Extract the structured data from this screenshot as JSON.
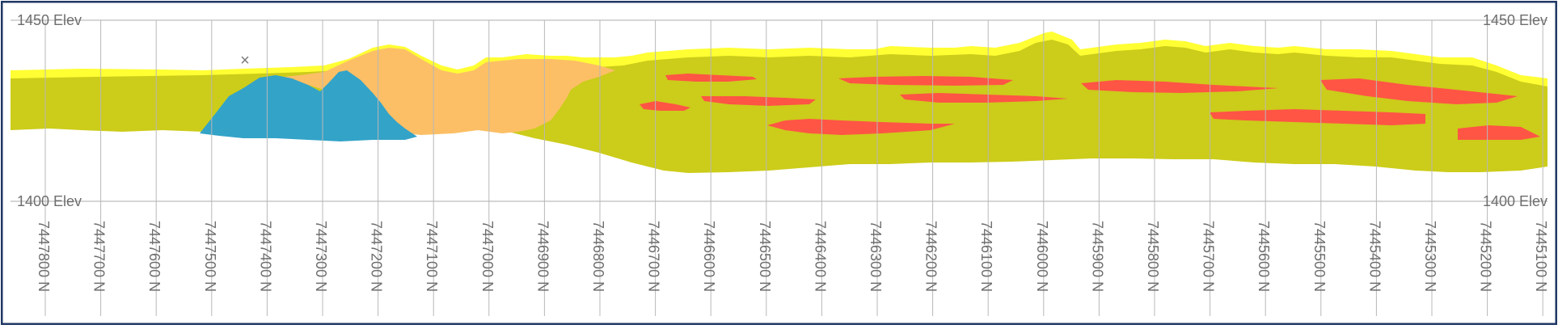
{
  "section": {
    "elevation_labels": {
      "top": "1450 Elev",
      "bottom": "1400 Elev"
    },
    "northing_labels": [
      "7447800 N",
      "7447700 N",
      "7447600 N",
      "7447500 N",
      "7447400 N",
      "7447300 N",
      "7447200 N",
      "7447100 N",
      "7447000 N",
      "7446900 N",
      "7446800 N",
      "7446700 N",
      "7446600 N",
      "7446500 N",
      "7446400 N",
      "7446300 N",
      "7446200 N",
      "7446100 N",
      "7446000 N",
      "7445900 N",
      "7445800 N",
      "7445700 N",
      "7445600 N",
      "7445500 N",
      "7445400 N",
      "7445300 N",
      "7445200 N",
      "7445100 N"
    ],
    "marker_symbol": "×",
    "colors": {
      "frame": "#1f3864",
      "grid": "#b8b8b8",
      "elev_line": "#bdbdbd",
      "label": "#6e6e6e",
      "surface_yellow": "#ffff33",
      "olive_unit": "#cccc1a",
      "orange_unit": "#fcbf66",
      "blue_unit": "#33a3c8",
      "red_lenses": "#ff5545"
    }
  }
}
